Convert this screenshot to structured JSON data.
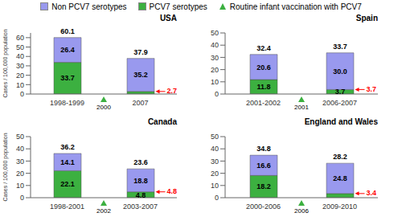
{
  "chart_data": [
    {
      "type": "bar",
      "stacked": true,
      "title": "USA",
      "ylabel": "Cases / 100,000 population",
      "categories": [
        "1998-1999",
        "2007"
      ],
      "series": [
        {
          "name": "PCV7 serotypes",
          "color": "#3cb040",
          "values": [
            33.7,
            2.7
          ],
          "data_labels": true,
          "value_labels": [
            "33.7",
            null
          ]
        },
        {
          "name": "Non PCV7 serotypes",
          "color": "#9999ee",
          "values": [
            26.4,
            35.2
          ],
          "data_labels": true
        }
      ],
      "totals": [
        60.1,
        37.9
      ],
      "ylim": [
        0,
        65
      ],
      "yticks": [
        0,
        10,
        20,
        30,
        40,
        50,
        60
      ],
      "grid": false,
      "annotations": [
        {
          "text": "2.7",
          "x": "2007",
          "y": 2.7,
          "color": "#ff0000"
        },
        {
          "text": "2000",
          "marker": "triangle",
          "color": "#3cb040",
          "name": "Routine infant vaccination with PCV7"
        }
      ]
    },
    {
      "type": "bar",
      "stacked": true,
      "title": "Spain",
      "categories": [
        "2001-2002",
        "2006-2007"
      ],
      "series": [
        {
          "name": "PCV7 serotypes",
          "color": "#3cb040",
          "values": [
            11.8,
            3.7
          ],
          "data_labels": true
        },
        {
          "name": "Non PCV7 serotypes",
          "color": "#9999ee",
          "values": [
            20.6,
            30.0
          ],
          "data_labels": true,
          "value_labels": [
            "20.6",
            "30.0"
          ]
        }
      ],
      "totals": [
        32.4,
        33.7
      ],
      "ylim": [
        0,
        50
      ],
      "yticks": [
        0,
        10,
        20,
        30,
        40,
        50
      ],
      "grid": false,
      "annotations": [
        {
          "text": "3.7",
          "x": "2006-2007",
          "y": 3.7,
          "color": "#ff0000"
        },
        {
          "text": "2001",
          "marker": "triangle",
          "color": "#3cb040",
          "name": "Routine infant vaccination with PCV7"
        }
      ]
    },
    {
      "type": "bar",
      "stacked": true,
      "title": "Canada",
      "ylabel": "Cases / 100,000 population",
      "categories": [
        "1998-2001",
        "2003-2007"
      ],
      "series": [
        {
          "name": "PCV7 serotypes",
          "color": "#3cb040",
          "values": [
            22.1,
            4.8
          ],
          "data_labels": true
        },
        {
          "name": "Non PCV7 serotypes",
          "color": "#9999ee",
          "values": [
            14.1,
            18.8
          ],
          "data_labels": true
        }
      ],
      "totals": [
        36.2,
        23.6
      ],
      "ylim": [
        0,
        50
      ],
      "yticks": [
        0,
        10,
        20,
        30,
        40,
        50
      ],
      "grid": false,
      "annotations": [
        {
          "text": "4.8",
          "x": "2003-2007",
          "y": 4.8,
          "color": "#ff0000"
        },
        {
          "text": "2002",
          "marker": "triangle",
          "color": "#3cb040",
          "name": "Routine infant vaccination with PCV7"
        }
      ]
    },
    {
      "type": "bar",
      "stacked": true,
      "title": "England and Wales",
      "categories": [
        "2000-2006",
        "2009-2010"
      ],
      "series": [
        {
          "name": "PCV7 serotypes",
          "color": "#3cb040",
          "values": [
            18.2,
            3.4
          ],
          "data_labels": true,
          "value_labels": [
            "18.2",
            null
          ]
        },
        {
          "name": "Non PCV7 serotypes",
          "color": "#9999ee",
          "values": [
            16.6,
            24.8
          ],
          "data_labels": true
        }
      ],
      "totals": [
        34.8,
        28.2
      ],
      "ylim": [
        0,
        50
      ],
      "yticks": [
        0,
        10,
        20,
        30,
        40,
        50
      ],
      "grid": false,
      "annotations": [
        {
          "text": "3.4",
          "x": "2009-2010",
          "y": 3.4,
          "color": "#ff0000"
        },
        {
          "text": "2006",
          "marker": "triangle",
          "color": "#3cb040",
          "name": "Routine infant vaccination with PCV7"
        }
      ]
    }
  ]
}
